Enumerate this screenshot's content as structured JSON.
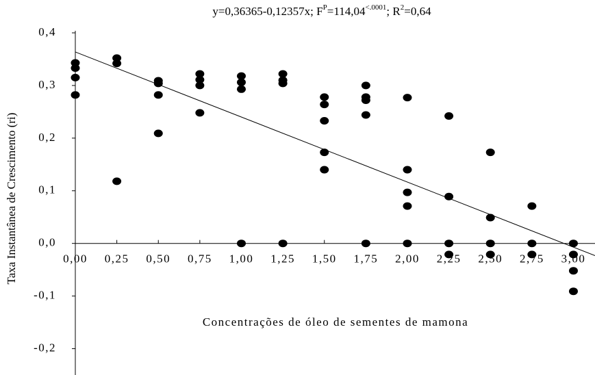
{
  "chart_data": {
    "type": "scatter",
    "title": [
      "y=0,36365-0,12357x; F",
      "P",
      "=114,04",
      "<.0001",
      "; R",
      "2",
      "=0,64"
    ],
    "x_label": "Concentrações de óleo de sementes de mamona",
    "y_label": "Taxa Instantânea de Crescimento (ri)",
    "xlim": [
      0,
      3.13
    ],
    "ylim": [
      -0.25,
      0.4
    ],
    "xticks": [
      {
        "value": 0,
        "label": "0,00"
      },
      {
        "value": 0.25,
        "label": "0,25"
      },
      {
        "value": 0.5,
        "label": "0,50"
      },
      {
        "value": 0.75,
        "label": "0,75"
      },
      {
        "value": 1,
        "label": "1,00"
      },
      {
        "value": 1.25,
        "label": "1,25"
      },
      {
        "value": 1.5,
        "label": "1,50"
      },
      {
        "value": 1.75,
        "label": "1,75"
      },
      {
        "value": 2,
        "label": "2,00"
      },
      {
        "value": 2.25,
        "label": "2,25"
      },
      {
        "value": 2.5,
        "label": "2,50"
      },
      {
        "value": 2.75,
        "label": "2,75"
      },
      {
        "value": 3,
        "label": "3,00"
      }
    ],
    "yticks": [
      {
        "value": 0.4,
        "label": "0,4"
      },
      {
        "value": 0.3,
        "label": "0,3"
      },
      {
        "value": 0.2,
        "label": "0,2"
      },
      {
        "value": 0.1,
        "label": "0,1"
      },
      {
        "value": 0,
        "label": "0,0"
      },
      {
        "value": -0.1,
        "label": "-0,1"
      },
      {
        "value": -0.2,
        "label": "-0,2"
      }
    ],
    "regression": {
      "intercept": 0.36365,
      "slope": -0.12357
    },
    "series": [
      {
        "color": "#000000",
        "x": [
          0,
          0,
          0,
          0,
          0.25,
          0.25,
          0.25,
          0.5,
          0.5,
          0.5,
          0.5,
          0.75,
          0.75,
          0.75,
          0.75,
          1,
          1,
          1,
          1,
          1.25,
          1.25,
          1.25,
          1.25,
          1.5,
          1.5,
          1.5,
          1.5,
          1.5,
          1.75,
          1.75,
          1.75,
          1.75,
          1.75,
          2,
          2,
          2,
          2,
          2,
          2.25,
          2.25,
          2.25,
          2.25,
          2.5,
          2.5,
          2.5,
          2.5,
          2.75,
          2.75,
          2.75,
          3,
          3,
          3,
          3
        ],
        "y": [
          0.343,
          0.333,
          0.315,
          0.282,
          0.352,
          0.342,
          0.118,
          0.309,
          0.304,
          0.282,
          0.209,
          0.322,
          0.311,
          0.3,
          0.248,
          0.318,
          0.306,
          0.293,
          0,
          0.322,
          0.31,
          0.304,
          0,
          0.278,
          0.264,
          0.233,
          0.173,
          0.14,
          0.3,
          0.278,
          0.272,
          0.244,
          0,
          0.277,
          0.14,
          0.097,
          0.071,
          0,
          0.242,
          0.089,
          0,
          -0.021,
          0.173,
          0.049,
          0,
          -0.021,
          0.071,
          0,
          -0.021,
          0,
          -0.021,
          -0.052,
          -0.091
        ]
      }
    ]
  }
}
